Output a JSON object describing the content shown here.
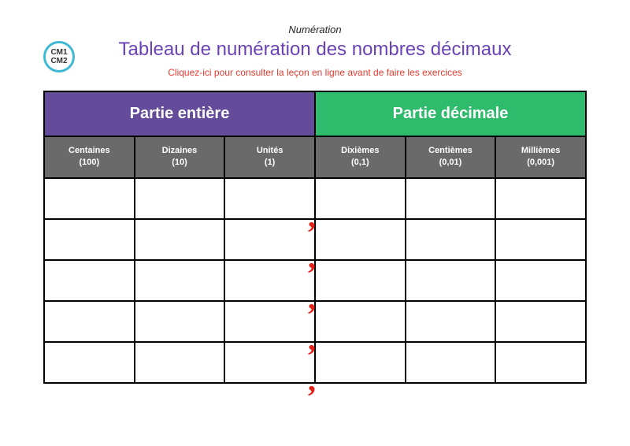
{
  "badge": {
    "line1": "CM1",
    "line2": "CM2"
  },
  "supertitle": "Numération",
  "title": "Tableau de numération des nombres décimaux",
  "subtitle_link": "Cliquez-ici pour consulter la leçon en ligne avant de faire les exercices",
  "sections": {
    "entiere": "Partie entière",
    "decimale": "Partie décimale"
  },
  "columns": [
    {
      "label": "Centaines",
      "sub": "(100)"
    },
    {
      "label": "Dizaines",
      "sub": "(10)"
    },
    {
      "label": "Unités",
      "sub": "(1)"
    },
    {
      "label": "Dixièmes",
      "sub": "(0,1)"
    },
    {
      "label": "Centièmes",
      "sub": "(0,01)"
    },
    {
      "label": "Millièmes",
      "sub": "(0,001)"
    }
  ],
  "data_row_count": 5,
  "colors": {
    "entiere_bg": "#654c9a",
    "decimale_bg": "#2ebb6b",
    "colheader_bg": "#6a6a6a",
    "title_color": "#6a42b5",
    "link_color": "#e63a2e",
    "comma_color": "#e61f18",
    "badge_border": "#3fb8d4",
    "border_color": "#000000"
  },
  "comma_glyph": ","
}
